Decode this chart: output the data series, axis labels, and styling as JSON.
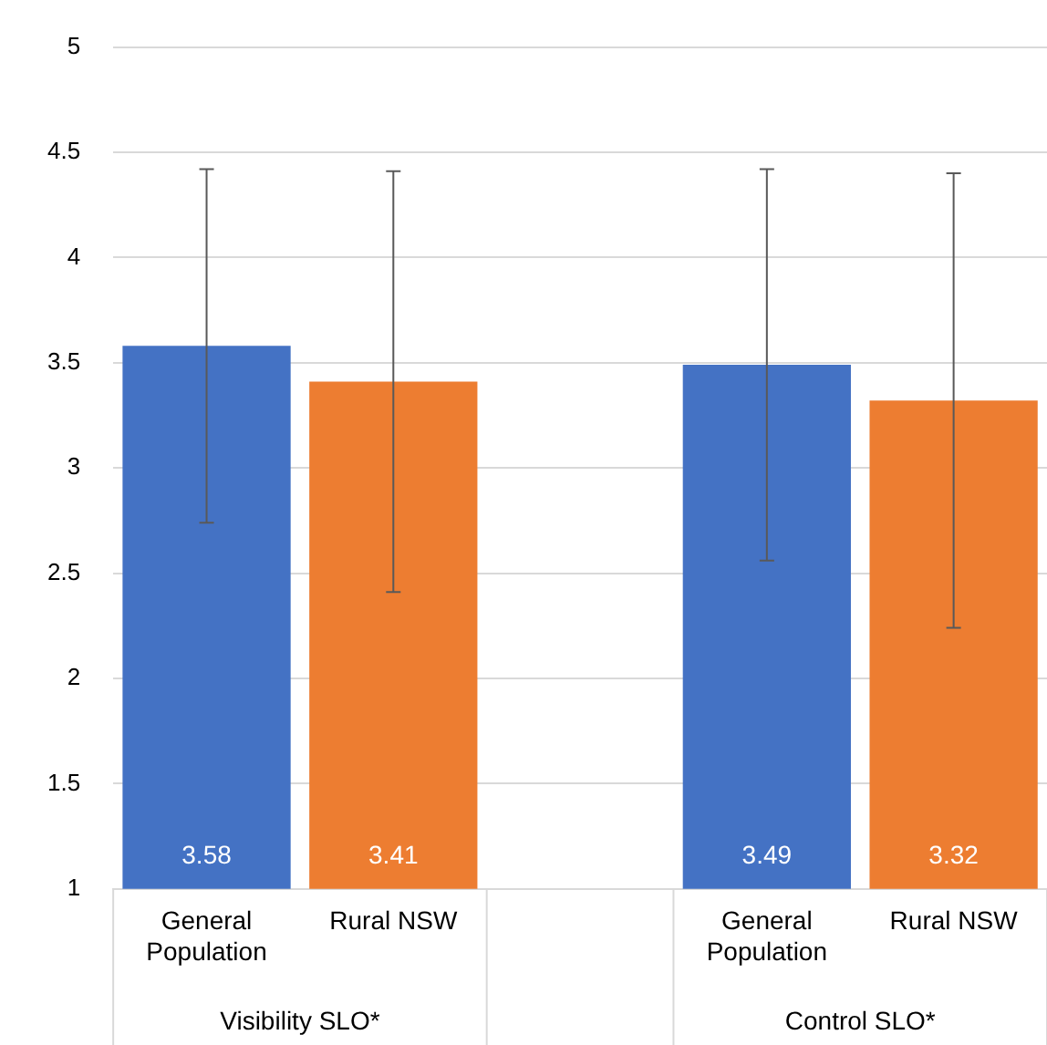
{
  "chart_data": {
    "type": "bar",
    "categories": [
      "General Population",
      "Rural NSW",
      null,
      "General Population",
      "Rural NSW"
    ],
    "values": [
      3.58,
      3.41,
      null,
      3.49,
      3.32
    ],
    "colors": [
      "#4472c4",
      "#ed7d31",
      null,
      "#4472c4",
      "#ed7d31"
    ],
    "errors": [
      [
        2.74,
        4.42
      ],
      [
        2.41,
        4.41
      ],
      null,
      [
        2.56,
        4.42
      ],
      [
        2.24,
        4.4
      ]
    ],
    "data_labels": true,
    "annotations": [
      "Visibility SLO*",
      "Control SLO*"
    ],
    "ylim": [
      1,
      5
    ],
    "yticks": [
      1,
      1.5,
      2,
      2.5,
      3,
      3.5,
      4,
      4.5,
      5
    ],
    "grid": "y",
    "legend": false
  }
}
